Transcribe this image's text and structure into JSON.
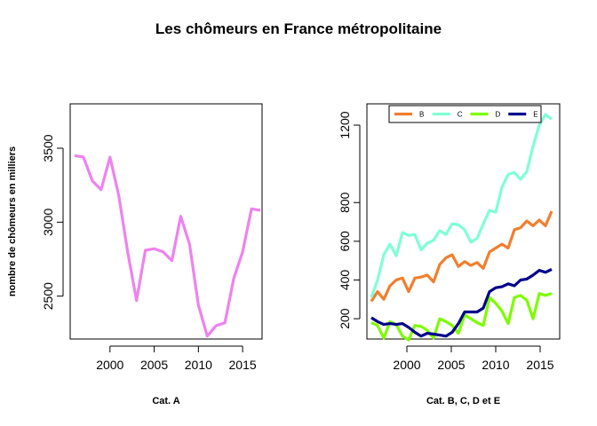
{
  "title": "Les chômeurs en France métropolitaine",
  "chart_data": [
    {
      "type": "line",
      "title": "",
      "xlabel": "Cat. A",
      "ylabel": "nombre de chômeurs en milliers",
      "xlim": [
        1995.5,
        2017.2
      ],
      "ylim": [
        2210,
        3800
      ],
      "x_ticks": [
        2000,
        2005,
        2010,
        2015
      ],
      "y_ticks": [
        2500,
        3000,
        3500
      ],
      "x": [
        1996,
        1997,
        1998,
        1999,
        2000,
        2001,
        2002,
        2003,
        2004,
        2005,
        2006,
        2007,
        2008,
        2009,
        2010,
        2011,
        2012,
        2013,
        2014,
        2015,
        2016,
        2017
      ],
      "series": [
        {
          "color": "#ee82ee",
          "values": [
            3450,
            3440,
            3280,
            3220,
            3440,
            3180,
            2800,
            2470,
            2810,
            2820,
            2800,
            2740,
            3040,
            2850,
            2440,
            2230,
            2300,
            2320,
            2620,
            2800,
            3090,
            3080
          ]
        }
      ],
      "grid": false,
      "legend": "none"
    },
    {
      "type": "line",
      "title": "",
      "xlabel": "Cat. B, C, D et E",
      "ylabel": "",
      "xlim": [
        1995.5,
        2017.2
      ],
      "ylim": [
        95,
        1310
      ],
      "x_ticks": [
        2000,
        2005,
        2010,
        2015
      ],
      "y_ticks": [
        200,
        400,
        600,
        800,
        1200
      ],
      "x": [
        1996,
        1996.7,
        1997.4,
        1998.1,
        1998.8,
        1999.5,
        2000.2,
        2000.9,
        2001.6,
        2002.3,
        2003,
        2003.7,
        2004.4,
        2005.1,
        2005.8,
        2006.5,
        2007.2,
        2007.9,
        2008.6,
        2009.3,
        2010,
        2010.7,
        2011.4,
        2012.1,
        2012.8,
        2013.5,
        2014.2,
        2014.9,
        2015.6,
        2016.3
      ],
      "series": [
        {
          "name": "B",
          "color": "#f07f2e",
          "values": [
            290,
            340,
            300,
            370,
            400,
            410,
            340,
            410,
            415,
            425,
            390,
            480,
            515,
            530,
            470,
            495,
            475,
            490,
            460,
            545,
            565,
            585,
            565,
            660,
            670,
            705,
            680,
            710,
            680,
            755
          ]
        },
        {
          "name": "C",
          "color": "#7fffd4",
          "values": [
            310,
            400,
            530,
            585,
            525,
            645,
            630,
            635,
            555,
            590,
            605,
            655,
            635,
            690,
            685,
            660,
            595,
            615,
            690,
            760,
            750,
            880,
            945,
            955,
            920,
            960,
            1090,
            1200,
            1255,
            1230
          ]
        },
        {
          "name": "D",
          "color": "#7cfc00",
          "values": [
            180,
            165,
            100,
            185,
            170,
            110,
            90,
            165,
            160,
            140,
            100,
            200,
            185,
            165,
            125,
            220,
            200,
            180,
            165,
            310,
            280,
            240,
            175,
            310,
            320,
            295,
            200,
            330,
            320,
            330
          ]
        },
        {
          "name": "E",
          "color": "#00008b",
          "values": [
            205,
            185,
            170,
            175,
            170,
            175,
            155,
            130,
            110,
            125,
            120,
            115,
            110,
            130,
            175,
            235,
            235,
            235,
            255,
            340,
            360,
            365,
            380,
            370,
            400,
            405,
            425,
            450,
            440,
            455
          ]
        }
      ],
      "grid": false,
      "legend": "top"
    }
  ]
}
